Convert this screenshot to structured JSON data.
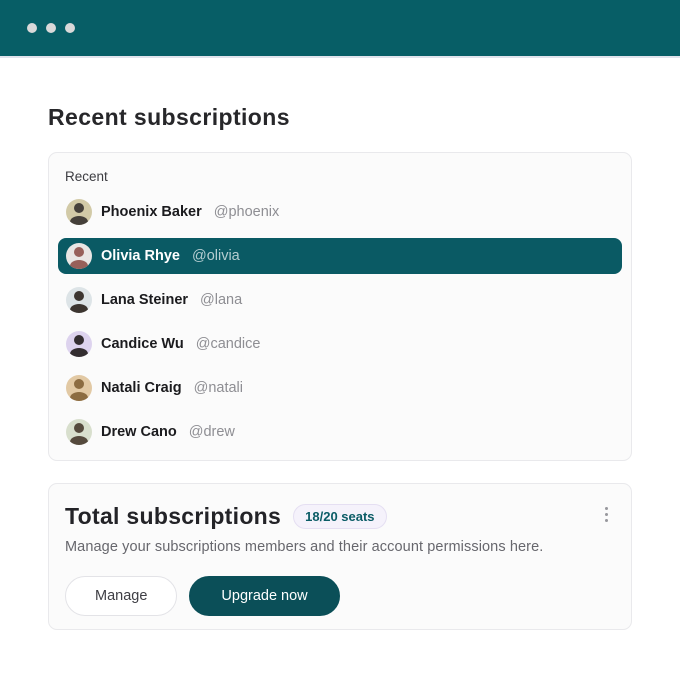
{
  "window": {
    "controls": [
      "dot",
      "dot",
      "dot"
    ]
  },
  "page": {
    "title": "Recent subscriptions"
  },
  "recent_card": {
    "label": "Recent",
    "users": [
      {
        "name": "Phoenix Baker",
        "handle": "@phoenix",
        "selected": false,
        "avatar_bg": "#d2caa7",
        "avatar_fg": "#45403a"
      },
      {
        "name": "Olivia Rhye",
        "handle": "@olivia",
        "selected": true,
        "avatar_bg": "#e9e6e4",
        "avatar_fg": "#97605a"
      },
      {
        "name": "Lana Steiner",
        "handle": "@lana",
        "selected": false,
        "avatar_bg": "#dde4e7",
        "avatar_fg": "#3c3530"
      },
      {
        "name": "Candice Wu",
        "handle": "@candice",
        "selected": false,
        "avatar_bg": "#ddd3ee",
        "avatar_fg": "#332d30"
      },
      {
        "name": "Natali Craig",
        "handle": "@natali",
        "selected": false,
        "avatar_bg": "#e2c9a4",
        "avatar_fg": "#8c6c41"
      },
      {
        "name": "Drew Cano",
        "handle": "@drew",
        "selected": false,
        "avatar_bg": "#d8dfcd",
        "avatar_fg": "#554a3d"
      }
    ]
  },
  "total_card": {
    "title": "Total subscriptions",
    "badge": "18/20 seats",
    "description": "Manage your subscriptions members and their account permissions here.",
    "manage_label": "Manage",
    "upgrade_label": "Upgrade now",
    "menu_icon": "kebab-menu"
  },
  "colors": {
    "brand_teal": "#075e66",
    "selected_row_teal": "#0a5a64",
    "upgrade_button_teal": "#0b4f58",
    "badge_bg": "#f5f2fb",
    "badge_text": "#0b5c66",
    "card_bg": "#fbfbfb",
    "card_border": "#e9e9ec"
  }
}
